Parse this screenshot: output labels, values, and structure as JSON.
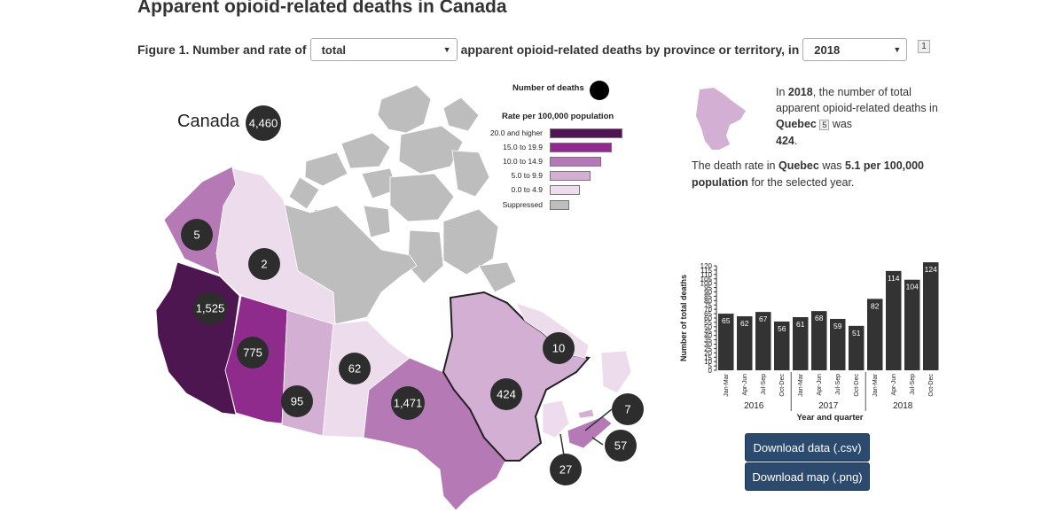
{
  "title": "Apparent opioid-related deaths in Canada",
  "figure": {
    "prefix": "Figure 1. Number and rate of",
    "middle": "apparent opioid-related deaths by province or territory, in",
    "type_select": "total",
    "year_select": "2018",
    "footnote_ref": "1"
  },
  "map": {
    "canada_label": "Canada",
    "canada_total": "4,460",
    "regions": [
      {
        "name": "Yukon",
        "value": "5"
      },
      {
        "name": "Northwest Territories",
        "value": "2"
      },
      {
        "name": "British Columbia",
        "value": "1,525"
      },
      {
        "name": "Alberta",
        "value": "775"
      },
      {
        "name": "Saskatchewan",
        "value": "95"
      },
      {
        "name": "Manitoba",
        "value": "62"
      },
      {
        "name": "Ontario",
        "value": "1,471"
      },
      {
        "name": "Quebec",
        "value": "424"
      },
      {
        "name": "Newfoundland and Labrador",
        "value": "10"
      },
      {
        "name": "Prince Edward Island",
        "value": "7"
      },
      {
        "name": "Nova Scotia",
        "value": "57"
      },
      {
        "name": "New Brunswick",
        "value": "27"
      }
    ]
  },
  "legend": {
    "number_title": "Number of deaths",
    "rate_title": "Rate per 100,000 population",
    "items": [
      {
        "label": "20.0 and higher",
        "color": "#4d1650"
      },
      {
        "label": "15.0 to 19.9",
        "color": "#8e2b8c"
      },
      {
        "label": "10.0 to 14.9",
        "color": "#b57ab5"
      },
      {
        "label": "5.0 to 9.9",
        "color": "#d3afd3"
      },
      {
        "label": "0.0 to 4.9",
        "color": "#eddcec"
      },
      {
        "label": "Suppressed",
        "color": "#bdbdbd"
      }
    ]
  },
  "info": {
    "p1_a": "In ",
    "year": "2018",
    "p1_b": ", the number of total apparent opioid-related deaths in ",
    "province": "Quebec",
    "footnote": "5",
    "p1_c": " was",
    "count": "424",
    "p1_d": ".",
    "p2_a": "The death rate in ",
    "p2_b": " was ",
    "rate": "5.1 per 100,000 population",
    "p2_c": " for the selected year."
  },
  "chart_data": {
    "type": "bar",
    "ylabel": "Number of total deaths",
    "xlabel": "Year and quarter",
    "ylim": [
      0,
      120
    ],
    "yticks": [
      0,
      5,
      10,
      15,
      20,
      25,
      30,
      35,
      40,
      45,
      50,
      55,
      60,
      65,
      70,
      75,
      80,
      85,
      90,
      95,
      100,
      105,
      110,
      115,
      120
    ],
    "categories": [
      "Jan-Mar",
      "Apr-Jun",
      "Jul-Sep",
      "Oct-Dec",
      "Jan-Mar",
      "Apr-Jun",
      "Jul-Sep",
      "Oct-Dec",
      "Jan-Mar",
      "Apr-Jun",
      "Jul-Sep",
      "Oct-Dec"
    ],
    "years": [
      "2016",
      "2017",
      "2018"
    ],
    "values": [
      65,
      62,
      67,
      56,
      61,
      68,
      59,
      51,
      82,
      114,
      104,
      124
    ],
    "bar_color": "#333333"
  },
  "buttons": {
    "download_data": "Download data (.csv)",
    "download_map": "Download map (.png)"
  }
}
